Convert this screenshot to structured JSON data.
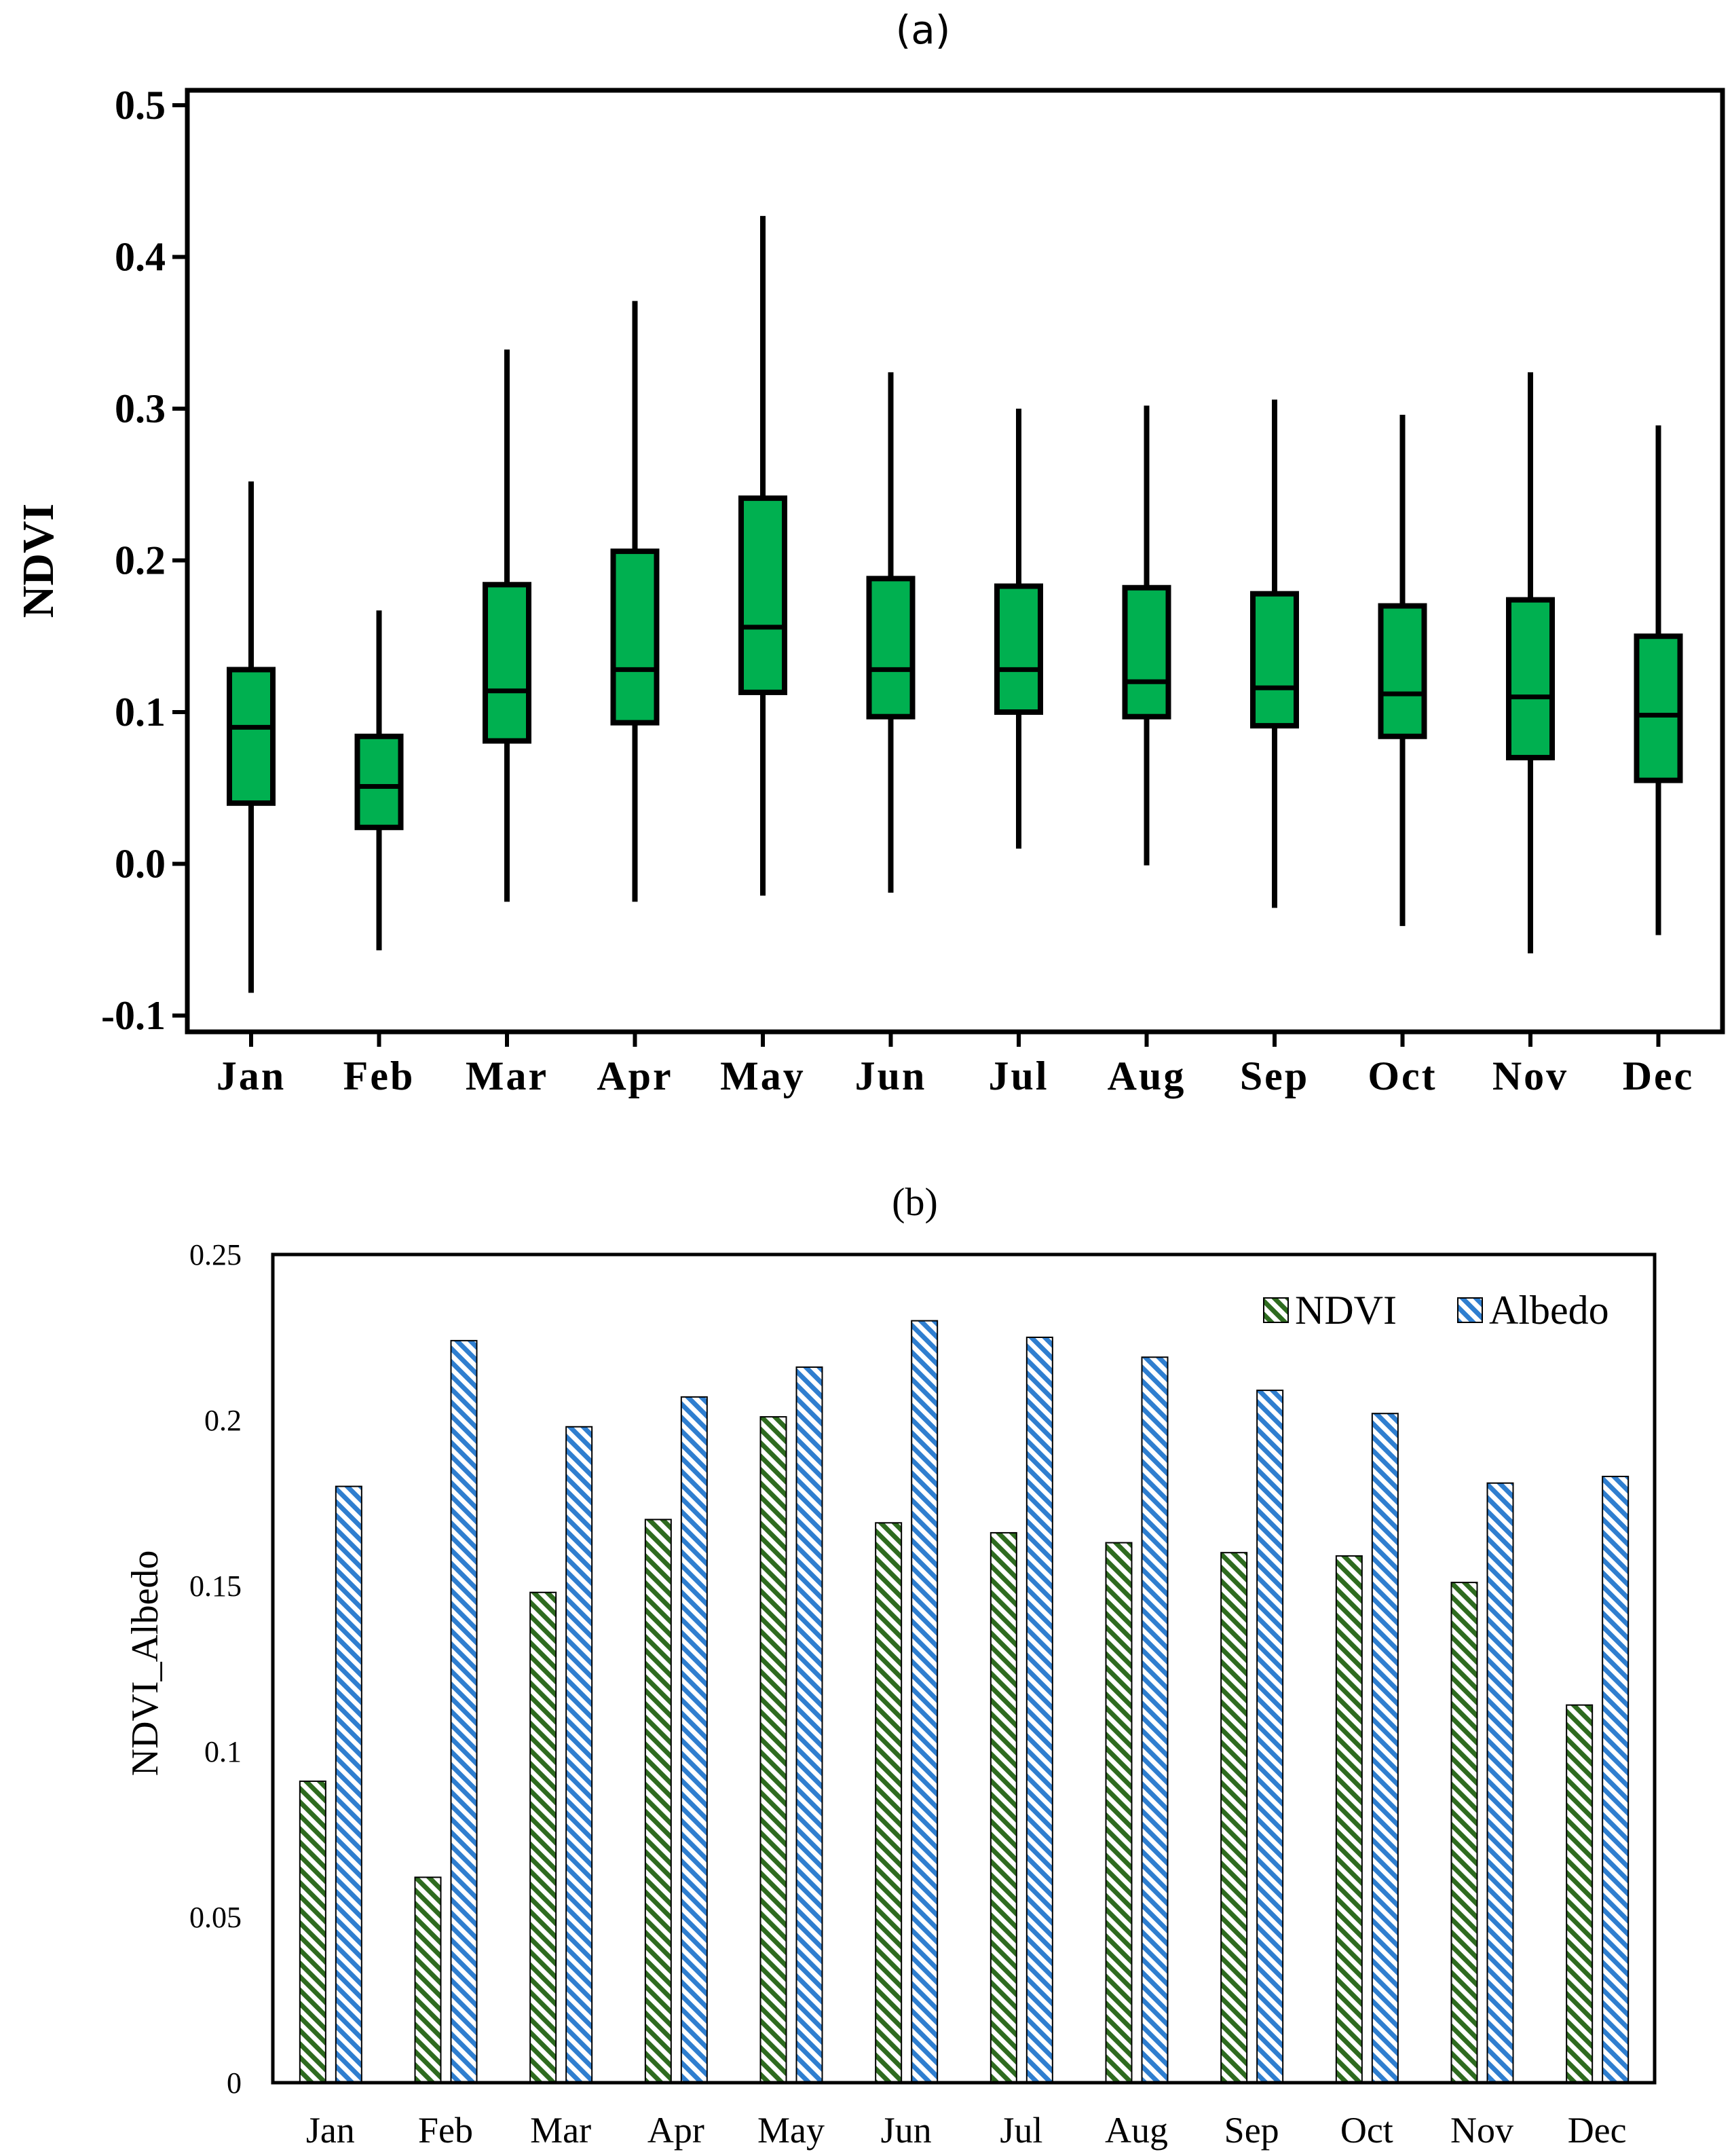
{
  "chart_data": [
    {
      "type": "box",
      "title": "(a)",
      "xlabel": "",
      "ylabel": "NDVI",
      "ylim": [
        -0.1,
        0.5
      ],
      "yticks": [
        "-0.1",
        "0.0",
        "0.1",
        "0.2",
        "0.3",
        "0.4",
        "0.5"
      ],
      "categories": [
        "Jan",
        "Feb",
        "Mar",
        "Apr",
        "May",
        "Jun",
        "Jul",
        "Aug",
        "Sep",
        "Oct",
        "Nov",
        "Dec"
      ],
      "box_color": "#00b050",
      "boxes": [
        {
          "min": -0.085,
          "q1": 0.04,
          "median": 0.09,
          "q3": 0.128,
          "max": 0.252
        },
        {
          "min": -0.057,
          "q1": 0.024,
          "median": 0.051,
          "q3": 0.084,
          "max": 0.167
        },
        {
          "min": -0.025,
          "q1": 0.081,
          "median": 0.114,
          "q3": 0.184,
          "max": 0.339
        },
        {
          "min": -0.025,
          "q1": 0.093,
          "median": 0.128,
          "q3": 0.206,
          "max": 0.371
        },
        {
          "min": -0.021,
          "q1": 0.113,
          "median": 0.156,
          "q3": 0.241,
          "max": 0.427
        },
        {
          "min": -0.019,
          "q1": 0.097,
          "median": 0.128,
          "q3": 0.188,
          "max": 0.324
        },
        {
          "min": 0.01,
          "q1": 0.1,
          "median": 0.128,
          "q3": 0.183,
          "max": 0.3
        },
        {
          "min": -0.001,
          "q1": 0.097,
          "median": 0.12,
          "q3": 0.182,
          "max": 0.302
        },
        {
          "min": -0.029,
          "q1": 0.091,
          "median": 0.116,
          "q3": 0.178,
          "max": 0.306
        },
        {
          "min": -0.041,
          "q1": 0.084,
          "median": 0.112,
          "q3": 0.17,
          "max": 0.296
        },
        {
          "min": -0.059,
          "q1": 0.07,
          "median": 0.11,
          "q3": 0.174,
          "max": 0.324
        },
        {
          "min": -0.047,
          "q1": 0.055,
          "median": 0.098,
          "q3": 0.15,
          "max": 0.289
        }
      ]
    },
    {
      "type": "bar",
      "title": "(b)",
      "xlabel": "",
      "ylabel": "NDVI_Albedo",
      "ylim": [
        0,
        0.25
      ],
      "yticks": [
        "0",
        "0.05",
        "0.1",
        "0.15",
        "0.2",
        "0.25"
      ],
      "categories": [
        "Jan",
        "Feb",
        "Mar",
        "Apr",
        "May",
        "Jun",
        "Jul",
        "Aug",
        "Sep",
        "Oct",
        "Nov",
        "Dec"
      ],
      "legend_position": "top-right",
      "series": [
        {
          "name": "NDVI",
          "color": "#2e6b1f",
          "values": [
            0.091,
            0.062,
            0.148,
            0.17,
            0.201,
            0.169,
            0.166,
            0.163,
            0.16,
            0.159,
            0.151,
            0.114
          ]
        },
        {
          "name": "Albedo",
          "color": "#2f7ecf",
          "values": [
            0.18,
            0.224,
            0.198,
            0.207,
            0.216,
            0.23,
            0.225,
            0.219,
            0.209,
            0.202,
            0.181,
            0.183
          ]
        }
      ]
    }
  ]
}
